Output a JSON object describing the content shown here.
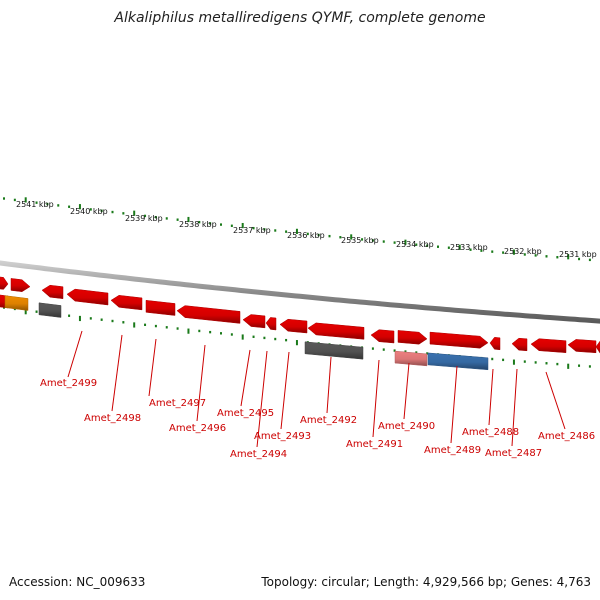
{
  "title": "Alkaliphilus metalliredigens QYMF, complete genome",
  "accession": "Accession: NC_009633",
  "summary": "Topology: circular; Length: 4,929,566 bp; Genes: 4,763",
  "colors": {
    "backbone": "#8c8c8c",
    "tick": "#1a7a1a",
    "gene_default": "#e60000",
    "gene_light": "#ee8080",
    "gene_dark": "#595959",
    "gene_blue": "#3a72b0",
    "gene_orange": "#f08c00",
    "label": "#cc0000"
  },
  "scale_labels": [
    "2541 kbp",
    "2540 kbp",
    "2539 kbp",
    "2538 kbp",
    "2537 kbp",
    "2536 kbp",
    "2535 kbp",
    "2534 kbp",
    "2533 kbp",
    "2532 kbp",
    "2531 kbp"
  ],
  "gene_labels": [
    "Amet_2499",
    "Amet_2498",
    "Amet_2497",
    "Amet_2496",
    "Amet_2495",
    "Amet_2494",
    "Amet_2493",
    "Amet_2492",
    "Amet_2491",
    "Amet_2490",
    "Amet_2489",
    "Amet_2488",
    "Amet_2487",
    "Amet_2486"
  ]
}
